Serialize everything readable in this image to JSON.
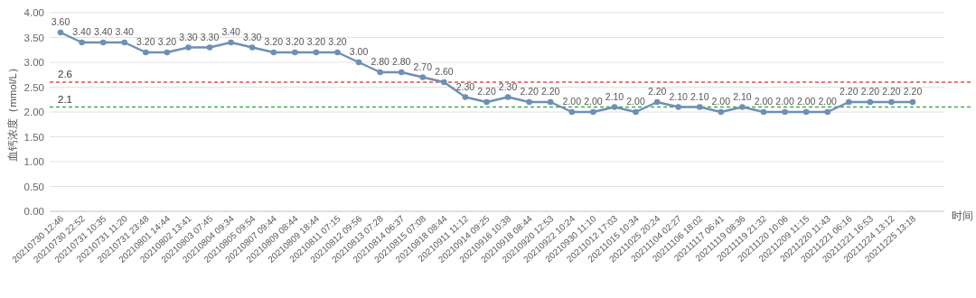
{
  "chart_data": {
    "type": "line",
    "ylabel": "血钙浓度（mmol/L）",
    "xlabel": "时间",
    "categories": [
      "20210730 12:46",
      "20210730 22:52",
      "20210731 10:35",
      "20210731 11:20",
      "20210731 23:48",
      "20210801 14:44",
      "20210802 13:41",
      "20210803 07:45",
      "20210804 09:34",
      "20210805 09:54",
      "20210807 09:44",
      "20210809 08:44",
      "20210809 18:44",
      "20210811 07:15",
      "20210812 09:56",
      "20210813 07:28",
      "20210814 06:37",
      "20210815 07:08",
      "20210818 08:44",
      "20210911 11:12",
      "20210914 09:25",
      "20210916 10:38",
      "20210918 08:44",
      "20210920 12:53",
      "20210922 10:24",
      "20210930 11:10",
      "20211012 17:03",
      "20211015 10:34",
      "20211025 20:24",
      "20211104 02:27",
      "20211106 18:02",
      "20211117 06:41",
      "20211119 08:36",
      "20211119 21:32",
      "20211120 10:06",
      "20211209 11:15",
      "20211220 11:43",
      "20211221 06:16",
      "20211221 16:53",
      "20211224 13:12",
      "20211225 13:18"
    ],
    "values": [
      3.6,
      3.4,
      3.4,
      3.4,
      3.2,
      3.2,
      3.3,
      3.3,
      3.4,
      3.3,
      3.2,
      3.2,
      3.2,
      3.2,
      3.0,
      2.8,
      2.8,
      2.7,
      2.6,
      2.3,
      2.2,
      2.3,
      2.2,
      2.2,
      2.0,
      2.0,
      2.1,
      2.0,
      2.2,
      2.1,
      2.1,
      2.0,
      2.1,
      2.0,
      2.0,
      2.0,
      2.0,
      2.2,
      2.2,
      2.2,
      2.2
    ],
    "value_labels": [
      "3.60",
      "3.40",
      "3.40",
      "3.40",
      "3.20",
      "3.20",
      "3.30",
      "3.30",
      "3.40",
      "3.30",
      "3.20",
      "3.20",
      "3.20",
      "3.20",
      "3.00",
      "2.80",
      "2.80",
      "2.70",
      "2.60",
      "2.30",
      "2.20",
      "2.30",
      "2.20",
      "2.20",
      "2.00",
      "2.00",
      "2.10",
      "2.00",
      "2.20",
      "2.10",
      "2.10",
      "2.00",
      "2.10",
      "2.00",
      "2.00",
      "2.00",
      "2.00",
      "2.20",
      "2.20",
      "2.20",
      "2.20"
    ],
    "color": "#6f8fb4",
    "marker": "circle",
    "grid": "y",
    "ylim": [
      0,
      4
    ],
    "yticks": [
      {
        "value": 0,
        "label": "0.00"
      },
      {
        "value": 0.5,
        "label": "0.50"
      },
      {
        "value": 1,
        "label": "1.00"
      },
      {
        "value": 1.5,
        "label": "1.50"
      },
      {
        "value": 2,
        "label": "2.00"
      },
      {
        "value": 2.5,
        "label": "2.50"
      },
      {
        "value": 3,
        "label": "3.00"
      },
      {
        "value": 3.5,
        "label": "3.50"
      },
      {
        "value": 4,
        "label": "4.00"
      }
    ],
    "ref_lines": [
      {
        "axis": "y",
        "value": 2.6,
        "label": "2.6",
        "color": "#d9534a",
        "line_style": "dashed"
      },
      {
        "axis": "y",
        "value": 2.1,
        "label": "2.1",
        "color": "#3fae4a",
        "line_style": "dashed"
      }
    ]
  }
}
